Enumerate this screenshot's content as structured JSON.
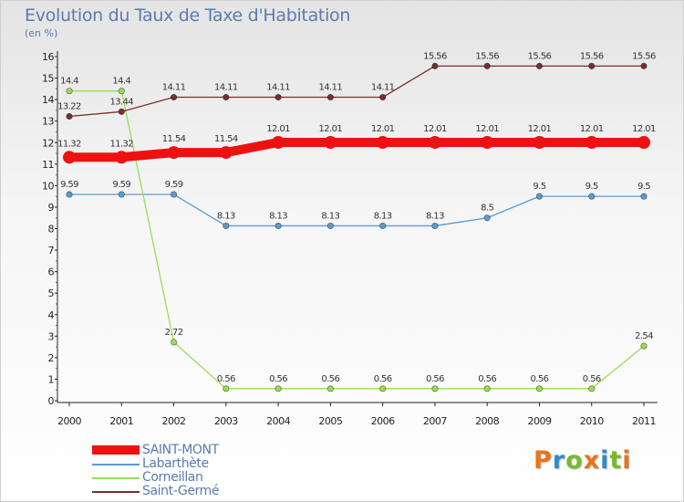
{
  "header": {
    "title": "Evolution du Taux de Taxe d'Habitation",
    "unit": "(en %)"
  },
  "logo": {
    "text": "Proxiti",
    "colors": [
      "#e8731a",
      "#2e8ccf",
      "#7ab82e",
      "#e8731a",
      "#2e8ccf",
      "#7ab82e",
      "#e8731a"
    ]
  },
  "chart_data": {
    "type": "line",
    "title": "Evolution du Taux de Taxe d'Habitation",
    "ylabel": "(en %)",
    "xlabel": "",
    "x": [
      "2000",
      "2001",
      "2002",
      "2003",
      "2004",
      "2005",
      "2006",
      "2007",
      "2008",
      "2009",
      "2010",
      "2011"
    ],
    "ylim": [
      0,
      16
    ],
    "yticks": [
      "0",
      "1",
      "2",
      "3",
      "4",
      "5",
      "6",
      "7",
      "8",
      "9",
      "10",
      "11",
      "12",
      "13",
      "14",
      "15",
      "16"
    ],
    "grid": false,
    "legend_position": "bottom-left",
    "series": [
      {
        "name": "SAINT-MONT",
        "color": "#ee1111",
        "emphasis": "thick",
        "values": [
          11.32,
          11.32,
          11.54,
          11.54,
          12.01,
          12.01,
          12.01,
          12.01,
          12.01,
          12.01,
          12.01,
          12.01
        ],
        "labels": [
          "11.32",
          "11.32",
          "11.54",
          "11.54",
          "12.01",
          "12.01",
          "12.01",
          "12.01",
          "12.01",
          "12.01",
          "12.01",
          "12.01"
        ]
      },
      {
        "name": "Labarthète",
        "color": "#5b9bd5",
        "values": [
          9.59,
          9.59,
          9.59,
          8.13,
          8.13,
          8.13,
          8.13,
          8.13,
          8.5,
          9.5,
          9.5,
          9.5
        ],
        "labels": [
          "9.59",
          "9.59",
          "9.59",
          "8.13",
          "8.13",
          "8.13",
          "8.13",
          "8.13",
          "8.5",
          "9.5",
          "9.5",
          "9.5"
        ]
      },
      {
        "name": "Corneillan",
        "color": "#99dd55",
        "values": [
          14.4,
          14.4,
          2.72,
          0.56,
          0.56,
          0.56,
          0.56,
          0.56,
          0.56,
          0.56,
          0.56,
          2.54
        ],
        "labels": [
          "14.4",
          "14.4",
          "2.72",
          "0.56",
          "0.56",
          "0.56",
          "0.56",
          "0.56",
          "0.56",
          "0.56",
          "0.56",
          "2.54"
        ]
      },
      {
        "name": "Saint-Germé",
        "color": "#7a2e2e",
        "values": [
          13.22,
          13.44,
          14.11,
          14.11,
          14.11,
          14.11,
          14.11,
          15.56,
          15.56,
          15.56,
          15.56,
          15.56
        ],
        "labels": [
          "13.22",
          "13.44",
          "14.11",
          "14.11",
          "14.11",
          "14.11",
          "14.11",
          "15.56",
          "15.56",
          "15.56",
          "15.56",
          "15.56"
        ]
      }
    ]
  }
}
